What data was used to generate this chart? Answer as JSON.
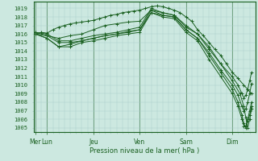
{
  "bg_color": "#cce8e0",
  "grid_color": "#a8ccc8",
  "line_color": "#1a6020",
  "marker_color": "#1a6020",
  "ylim": [
    1004.5,
    1019.8
  ],
  "yticks": [
    1005,
    1006,
    1007,
    1008,
    1009,
    1010,
    1011,
    1012,
    1013,
    1014,
    1015,
    1016,
    1017,
    1018,
    1019
  ],
  "xlabel": "Pression niveau de la mer( hPa )",
  "day_labels": [
    "Mer",
    "Lun",
    "Jeu",
    "Ven",
    "Sam",
    "Dim"
  ],
  "day_positions": [
    0,
    12,
    60,
    108,
    156,
    204
  ],
  "xlim": [
    -2,
    228
  ],
  "lines": [
    {
      "x": [
        0,
        6,
        12,
        18,
        24,
        30,
        36,
        42,
        48,
        54,
        60,
        66,
        72,
        78,
        84,
        90,
        96,
        102,
        108,
        114,
        120,
        126,
        132,
        138,
        144,
        150,
        156,
        162,
        168,
        174,
        180,
        186,
        192,
        198,
        204,
        210,
        216,
        220,
        224
      ],
      "y": [
        1016.0,
        1016.2,
        1016.1,
        1016.5,
        1016.8,
        1017.0,
        1017.2,
        1017.3,
        1017.4,
        1017.5,
        1017.6,
        1017.8,
        1018.0,
        1018.2,
        1018.3,
        1018.5,
        1018.6,
        1018.7,
        1018.8,
        1019.0,
        1019.2,
        1019.3,
        1019.2,
        1019.0,
        1018.8,
        1018.5,
        1018.0,
        1017.5,
        1016.5,
        1015.8,
        1015.0,
        1014.2,
        1013.5,
        1012.5,
        1011.5,
        1010.8,
        1010.0,
        1009.5,
        1009.0
      ]
    },
    {
      "x": [
        0,
        12,
        24,
        36,
        48,
        60,
        72,
        84,
        96,
        108,
        120,
        132,
        144,
        156,
        168,
        180,
        192,
        204,
        212,
        216,
        218,
        220,
        222,
        224
      ],
      "y": [
        1016.0,
        1015.8,
        1015.5,
        1015.8,
        1016.0,
        1016.5,
        1017.0,
        1017.2,
        1017.4,
        1017.5,
        1018.8,
        1018.5,
        1018.2,
        1017.0,
        1016.0,
        1014.5,
        1012.5,
        1010.5,
        1009.0,
        1007.5,
        1006.2,
        1005.0,
        1006.0,
        1007.2
      ]
    },
    {
      "x": [
        0,
        12,
        24,
        36,
        48,
        60,
        72,
        84,
        96,
        108,
        120,
        132,
        144,
        156,
        168,
        180,
        192,
        204,
        210,
        214,
        216,
        218,
        220,
        222,
        224
      ],
      "y": [
        1016.0,
        1015.5,
        1014.5,
        1014.8,
        1015.2,
        1015.5,
        1015.8,
        1016.0,
        1016.2,
        1016.5,
        1018.5,
        1018.2,
        1018.0,
        1016.5,
        1015.5,
        1013.5,
        1011.5,
        1009.5,
        1008.0,
        1006.5,
        1005.5,
        1005.0,
        1005.8,
        1006.5,
        1007.5
      ]
    },
    {
      "x": [
        0,
        12,
        24,
        36,
        48,
        60,
        72,
        84,
        96,
        108,
        120,
        132,
        144,
        156,
        168,
        180,
        192,
        204,
        210,
        214,
        216,
        218,
        220,
        222,
        224
      ],
      "y": [
        1016.0,
        1015.5,
        1014.5,
        1014.5,
        1015.0,
        1015.2,
        1015.5,
        1015.8,
        1016.0,
        1016.2,
        1018.5,
        1018.0,
        1017.8,
        1016.2,
        1015.2,
        1013.0,
        1011.0,
        1009.0,
        1007.5,
        1006.0,
        1005.2,
        1005.2,
        1006.0,
        1007.0,
        1008.0
      ]
    },
    {
      "x": [
        0,
        12,
        24,
        36,
        48,
        60,
        72,
        84,
        96,
        108,
        120,
        132,
        144,
        156,
        168,
        180,
        192,
        204,
        210,
        214,
        216,
        218,
        220,
        222,
        224
      ],
      "y": [
        1016.2,
        1015.8,
        1015.0,
        1015.0,
        1015.2,
        1015.5,
        1015.8,
        1016.0,
        1016.3,
        1016.5,
        1018.8,
        1018.2,
        1018.0,
        1016.5,
        1015.5,
        1013.8,
        1011.8,
        1010.0,
        1008.8,
        1007.5,
        1007.0,
        1007.2,
        1008.0,
        1009.0,
        1010.2
      ]
    },
    {
      "x": [
        0,
        12,
        24,
        36,
        48,
        60,
        72,
        84,
        96,
        108,
        120,
        132,
        144,
        156,
        168,
        180,
        192,
        204,
        210,
        214,
        216,
        218,
        220,
        222,
        224
      ],
      "y": [
        1016.2,
        1016.0,
        1015.2,
        1015.2,
        1015.5,
        1015.8,
        1016.0,
        1016.2,
        1016.5,
        1016.8,
        1019.0,
        1018.5,
        1018.2,
        1016.8,
        1016.0,
        1014.2,
        1012.5,
        1011.0,
        1010.0,
        1009.0,
        1008.5,
        1008.8,
        1009.5,
        1010.5,
        1011.5
      ]
    }
  ]
}
